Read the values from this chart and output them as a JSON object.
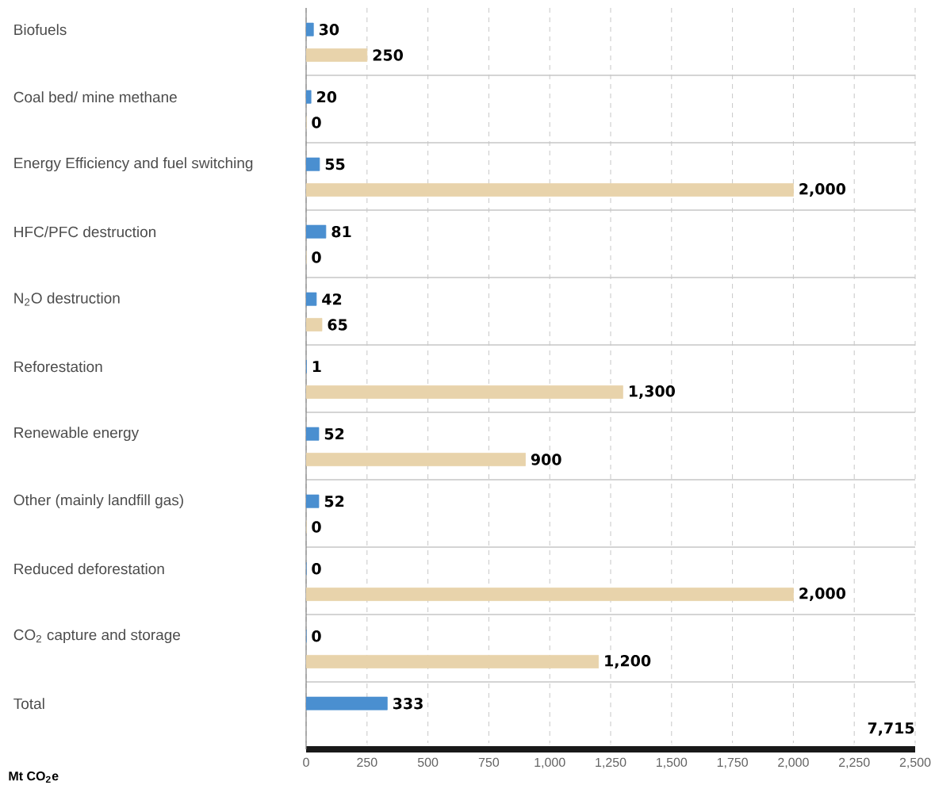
{
  "chart_data": {
    "type": "bar",
    "orientation": "horizontal",
    "xlabel": "Mt CO$_{2}$e",
    "categories": [
      "Biofuels",
      "Coal bed/ mine methane",
      "Energy Efficiency and fuel switching",
      "HFC/PFC destruction",
      "N$_{2}$O destruction",
      "Reforestation",
      "Renewable energy",
      "Other (mainly landfill gas)",
      "Reduced deforestation",
      "CO$_{2}$ capture and storage",
      "Total"
    ],
    "series": [
      {
        "color": "#4a8fd0",
        "values": [
          30,
          20,
          55,
          81,
          42,
          1,
          52,
          52,
          0,
          0,
          333
        ],
        "value_labels": [
          "30",
          "20",
          "55",
          "81",
          "42",
          "1",
          "52",
          "52",
          "0",
          "0",
          "333"
        ]
      },
      {
        "color": "#e8d3ab",
        "values": [
          250,
          0,
          2000,
          0,
          65,
          1300,
          900,
          0,
          2000,
          1200,
          null
        ],
        "value_labels": [
          "250",
          "0",
          "2,000",
          "0",
          "65",
          "1,300",
          "900",
          "0",
          "2,000",
          "1,200",
          "7,715"
        ]
      }
    ],
    "xlim": [
      0,
      2500
    ],
    "xticks": [
      0,
      250,
      500,
      750,
      {
        "value": 1000,
        "label": "1,000"
      },
      {
        "value": 1250,
        "label": "1,250"
      },
      {
        "value": 1500,
        "label": "1,500"
      },
      {
        "value": 1750,
        "label": "1,750"
      },
      {
        "value": 2000,
        "label": "2,000"
      },
      {
        "value": 2250,
        "label": "2,250"
      },
      {
        "value": 2500,
        "label": "2,500"
      }
    ],
    "grid": "x"
  }
}
